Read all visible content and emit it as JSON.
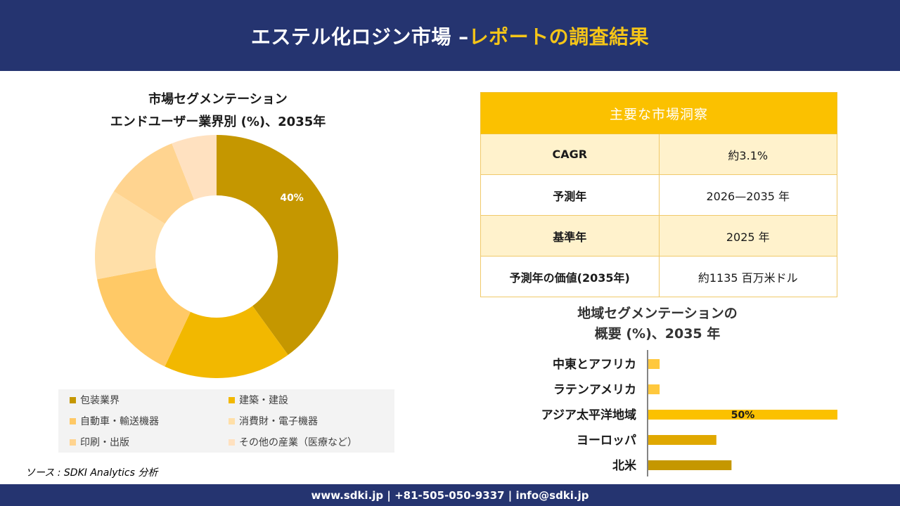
{
  "header": {
    "title_main": "エステル化ロジン市場 –",
    "title_accent": "レポートの調査結果"
  },
  "colors": {
    "navy": "#253470",
    "gold": "#fbc100",
    "accent_text": "#f5c518"
  },
  "chart_data": [
    {
      "type": "pie",
      "title_line1": "市場セグメンテーション",
      "title_line2": "エンドユーザー業界別 (%)、2035年",
      "categories": [
        "包装業界",
        "建築・建設",
        "自動車・輸送機器",
        "消費財・電子機器",
        "印刷・出版",
        "その他の産業（医療など）"
      ],
      "values": [
        40,
        17,
        15,
        12,
        10,
        6
      ],
      "colors": [
        "#c59700",
        "#f2b800",
        "#ffc966",
        "#ffdfa8",
        "#ffd490",
        "#ffe1c0"
      ],
      "data_labels": [
        "40%",
        "",
        "",
        "",
        "",
        ""
      ]
    },
    {
      "type": "bar",
      "orientation": "horizontal",
      "title_line1": "地域セグメンテーションの",
      "title_line2": "概要 (%)、2035 年",
      "categories": [
        "中東とアフリカ",
        "ラテンアメリカ",
        "アジア太平洋地域",
        "ヨーロッパ",
        "北米"
      ],
      "values": [
        3,
        3,
        50,
        18,
        22
      ],
      "colors": [
        "#ffc83d",
        "#ffc83d",
        "#fbc100",
        "#e0a800",
        "#c59700"
      ],
      "data_labels": [
        "",
        "",
        "50%",
        "",
        ""
      ],
      "xlim": [
        0,
        50
      ]
    }
  ],
  "insights": {
    "heading": "主要な市場洞察",
    "rows": [
      {
        "key": "CAGR",
        "value": "約3.1%"
      },
      {
        "key": "予測年",
        "value": "2026—2035 年"
      },
      {
        "key": "基準年",
        "value": "2025 年"
      },
      {
        "key": "予測年の価値(2035年)",
        "value": "約1135 百万米ドル"
      }
    ]
  },
  "source": "ソース : SDKI Analytics 分析",
  "footer": {
    "text": "www.sdki.jp | +81-505-050-9337 | info@sdki.jp"
  }
}
